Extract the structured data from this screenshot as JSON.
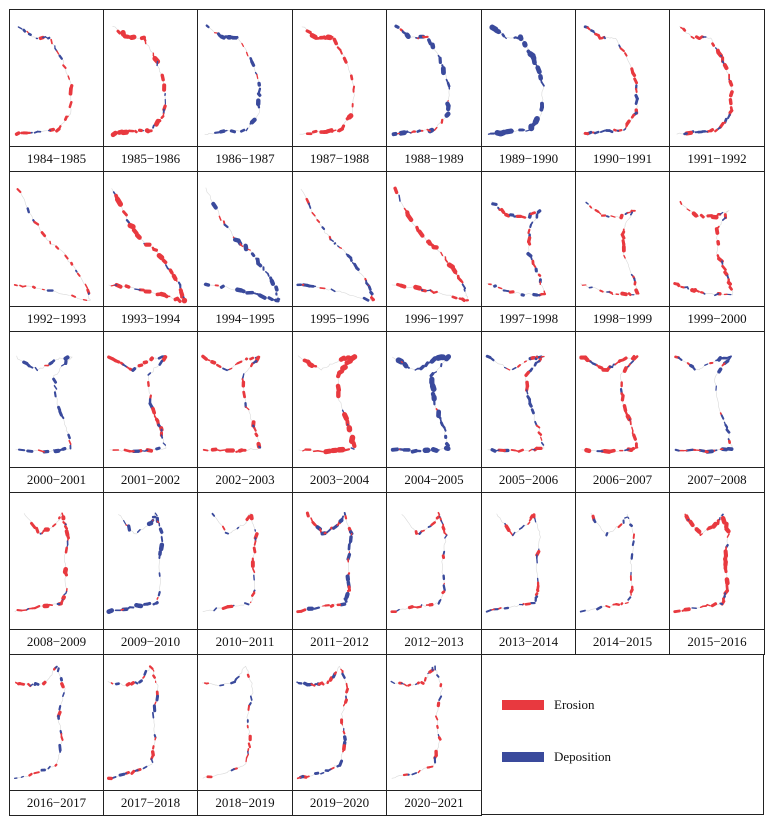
{
  "legend": {
    "erosion_label": "Erosion",
    "deposition_label": "Deposition",
    "erosion_color": "#e8393f",
    "deposition_color": "#3a4a9c"
  },
  "panels": [
    {
      "label": "1984−1985",
      "shape": "A",
      "ero": 0.55,
      "dep": 0.3
    },
    {
      "label": "1985−1986",
      "shape": "A",
      "ero": 0.8,
      "dep": 0.15
    },
    {
      "label": "1986−1987",
      "shape": "A",
      "ero": 0.05,
      "dep": 0.7
    },
    {
      "label": "1987−1988",
      "shape": "A",
      "ero": 0.85,
      "dep": 0.05
    },
    {
      "label": "1988−1989",
      "shape": "A",
      "ero": 0.25,
      "dep": 0.8
    },
    {
      "label": "1989−1990",
      "shape": "A",
      "ero": 0.05,
      "dep": 0.95
    },
    {
      "label": "1990−1991",
      "shape": "A",
      "ero": 0.45,
      "dep": 0.45
    },
    {
      "label": "1991−1992",
      "shape": "A",
      "ero": 0.65,
      "dep": 0.35
    },
    {
      "label": "1992−1993",
      "shape": "B",
      "ero": 0.35,
      "dep": 0.3
    },
    {
      "label": "1993−1994",
      "shape": "B",
      "ero": 0.85,
      "dep": 0.2
    },
    {
      "label": "1994−1995",
      "shape": "B",
      "ero": 0.15,
      "dep": 0.7
    },
    {
      "label": "1995−1996",
      "shape": "B",
      "ero": 0.35,
      "dep": 0.4
    },
    {
      "label": "1996−1997",
      "shape": "B",
      "ero": 0.75,
      "dep": 0.15
    },
    {
      "label": "1997−1998",
      "shape": "C",
      "ero": 0.5,
      "dep": 0.5
    },
    {
      "label": "1998−1999",
      "shape": "C",
      "ero": 0.55,
      "dep": 0.2
    },
    {
      "label": "1999−2000",
      "shape": "C",
      "ero": 0.65,
      "dep": 0.15
    },
    {
      "label": "2000−2001",
      "shape": "D",
      "ero": 0.1,
      "dep": 0.6
    },
    {
      "label": "2001−2002",
      "shape": "D",
      "ero": 0.6,
      "dep": 0.45
    },
    {
      "label": "2002−2003",
      "shape": "D",
      "ero": 0.6,
      "dep": 0.3
    },
    {
      "label": "2003−2004",
      "shape": "D",
      "ero": 0.9,
      "dep": 0.05
    },
    {
      "label": "2004−2005",
      "shape": "D",
      "ero": 0.1,
      "dep": 0.95
    },
    {
      "label": "2005−2006",
      "shape": "D",
      "ero": 0.5,
      "dep": 0.45
    },
    {
      "label": "2006−2007",
      "shape": "D",
      "ero": 0.7,
      "dep": 0.25
    },
    {
      "label": "2007−2008",
      "shape": "D",
      "ero": 0.35,
      "dep": 0.55
    },
    {
      "label": "2008−2009",
      "shape": "E",
      "ero": 0.7,
      "dep": 0.2
    },
    {
      "label": "2009−2010",
      "shape": "E",
      "ero": 0.1,
      "dep": 0.7
    },
    {
      "label": "2010−2011",
      "shape": "E",
      "ero": 0.55,
      "dep": 0.15
    },
    {
      "label": "2011−2012",
      "shape": "E",
      "ero": 0.4,
      "dep": 0.6
    },
    {
      "label": "2012−2013",
      "shape": "E",
      "ero": 0.45,
      "dep": 0.25
    },
    {
      "label": "2013−2014",
      "shape": "E",
      "ero": 0.5,
      "dep": 0.3
    },
    {
      "label": "2014−2015",
      "shape": "E",
      "ero": 0.4,
      "dep": 0.3
    },
    {
      "label": "2015−2016",
      "shape": "E",
      "ero": 0.75,
      "dep": 0.25
    },
    {
      "label": "2016−2017",
      "shape": "F",
      "ero": 0.45,
      "dep": 0.35
    },
    {
      "label": "2017−2018",
      "shape": "F",
      "ero": 0.45,
      "dep": 0.4
    },
    {
      "label": "2018−2019",
      "shape": "F",
      "ero": 0.4,
      "dep": 0.25
    },
    {
      "label": "2019−2020",
      "shape": "F",
      "ero": 0.5,
      "dep": 0.45
    },
    {
      "label": "2020−2021",
      "shape": "F",
      "ero": 0.45,
      "dep": 0.2
    }
  ]
}
